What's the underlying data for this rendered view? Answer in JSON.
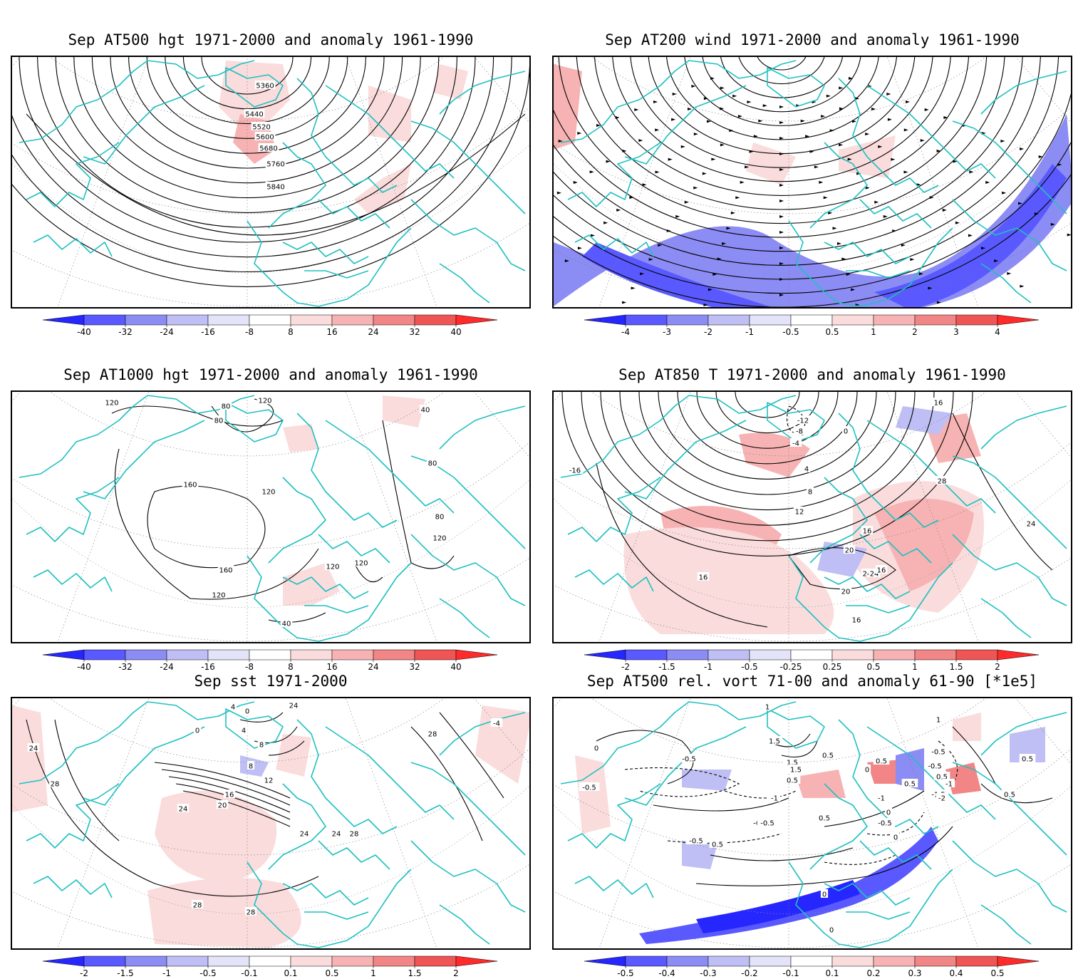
{
  "panels": [
    {
      "title": "Sep AT500 hgt 1971-2000 and anomaly 1961-1990",
      "kind": "hgt500",
      "contour_labels": [
        "5360",
        "5440",
        "5520",
        "5600",
        "5680",
        "5760",
        "5840"
      ],
      "colorbar": {
        "labels": [
          "-40",
          "-32",
          "-24",
          "-16",
          "-8",
          "8",
          "16",
          "24",
          "32",
          "40"
        ]
      }
    },
    {
      "title": "Sep AT200 wind 1971-2000 and anomaly 1961-1990",
      "kind": "wind200",
      "contour_labels": [],
      "colorbar": {
        "labels": [
          "-4",
          "-3",
          "-2",
          "-1",
          "-0.5",
          "0.5",
          "1",
          "2",
          "3",
          "4"
        ]
      }
    },
    {
      "title": "Sep AT1000 hgt 1971-2000 and anomaly 1961-1990",
      "kind": "hgt1000",
      "contour_labels": [
        "120",
        "80",
        "120",
        "80",
        "40",
        "160",
        "120",
        "80",
        "160",
        "120",
        "80",
        "120",
        "120",
        "120",
        "40"
      ],
      "colorbar": {
        "labels": [
          "-40",
          "-32",
          "-24",
          "-16",
          "-8",
          "8",
          "16",
          "24",
          "32",
          "40"
        ]
      }
    },
    {
      "title": "Sep AT850 T 1971-2000 and anomaly 1961-1990",
      "kind": "t850",
      "contour_labels": [
        "-12",
        "-8",
        "-4",
        "0",
        "4",
        "8",
        "12",
        "16",
        "20",
        "24",
        "28",
        "-16",
        "16",
        "24",
        "16",
        "20",
        "24",
        "16",
        "16"
      ],
      "colorbar": {
        "labels": [
          "-2",
          "-1.5",
          "-1",
          "-0.5",
          "-0.25",
          "0.25",
          "0.5",
          "1",
          "1.5",
          "2"
        ]
      }
    },
    {
      "title": "Sep sst 1971-2000",
      "kind": "sst",
      "contour_labels": [
        "24",
        "28",
        "4",
        "0",
        "8",
        "4",
        "8",
        "12",
        "16",
        "20",
        "24",
        "24",
        "24",
        "28",
        "28",
        "28",
        "28",
        "-4",
        "0",
        "24"
      ],
      "colorbar": {
        "labels": [
          "-2",
          "-1.5",
          "-1",
          "-0.5",
          "-0.1",
          "0.1",
          "0.5",
          "1",
          "1.5",
          "2"
        ]
      }
    },
    {
      "title": "Sep AT500 rel. vort 71-00 and anomaly 61-90 [*1e5]",
      "kind": "vort500",
      "contour_labels": [
        "0",
        "1",
        "1.5",
        "0.5",
        "-0.5",
        "1.5",
        "1.5",
        "0.5",
        "-0.5",
        "-1",
        "-0.5",
        "0.5",
        "0",
        "-0.5",
        "-0.5",
        "0.5",
        "-0.5",
        "0",
        "-1",
        "0.5",
        "0.5",
        "-0.5",
        "-1",
        "-1.5",
        "-2",
        "0.5",
        "0",
        "1",
        "-0.5",
        "0.5",
        "0",
        "0.5",
        "0"
      ],
      "colorbar": {
        "labels": [
          "-0.5",
          "-0.4",
          "-0.3",
          "-0.2",
          "-0.1",
          "0.1",
          "0.2",
          "0.3",
          "0.4",
          "0.5"
        ]
      }
    }
  ],
  "colors": {
    "coast": "#20c0c0",
    "blue_scale": [
      "#2626ff",
      "#5959ff",
      "#8c8cf5",
      "#bfbff5",
      "#e3e3fa"
    ],
    "red_scale": [
      "#fadcdc",
      "#f7b3b3",
      "#f28585",
      "#f05555",
      "#ff2a2a"
    ]
  }
}
